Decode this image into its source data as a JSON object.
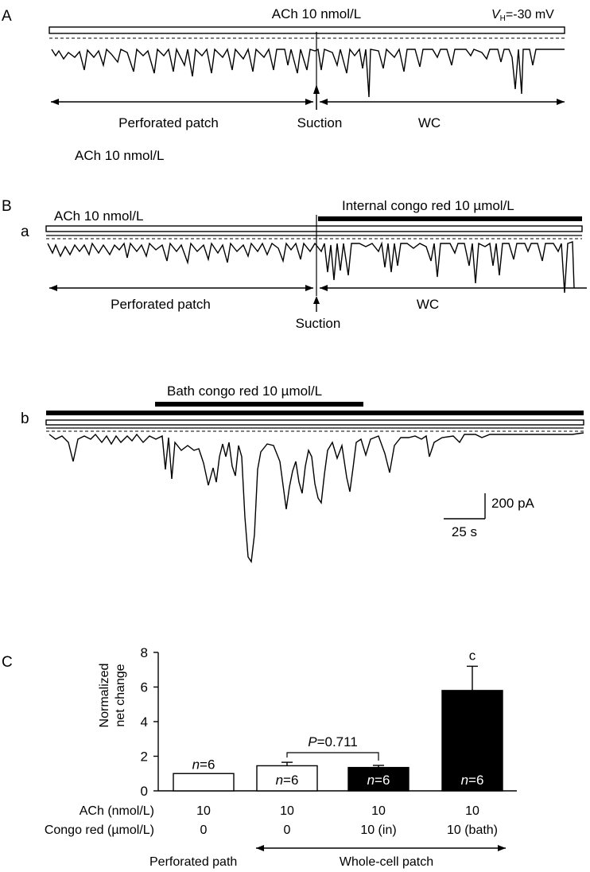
{
  "panel_a": {
    "letter": "A",
    "ach_bar_label": "ACh 10 nmol/L",
    "vh_symbol": "V",
    "vh_subscript": "H",
    "vh_value": "=-30 mV",
    "left_phase": "Perforated patch",
    "suction_label": "Suction",
    "right_phase": "WC",
    "note_below": "ACh 10 nmol/L"
  },
  "panel_b": {
    "letter": "B",
    "sub_a": {
      "letter": "a",
      "ach_bar_label": "ACh 10 nmol/L",
      "internal_label": "Internal congo red 10 µmol/L",
      "left_phase": "Perforated patch",
      "suction_label": "Suction",
      "right_phase": "WC"
    },
    "sub_b": {
      "letter": "b",
      "bath_label": "Bath congo red 10 µmol/L"
    },
    "scale_bar": {
      "current_label": "200 pA",
      "time_label": "25 s"
    }
  },
  "chart_data": {
    "type": "bar",
    "panel_letter": "C",
    "ylabel_line1": "Normalized",
    "ylabel_line2": "net change",
    "ylim": [
      0,
      8
    ],
    "yticks": [
      "0",
      "2",
      "4",
      "6",
      "8"
    ],
    "bars": [
      {
        "value": 1.0,
        "error": 0.0,
        "fill": "#ffffff",
        "n_italic": "n",
        "n_rest": "=6",
        "n_inside": false
      },
      {
        "value": 1.45,
        "error": 0.2,
        "fill": "#ffffff",
        "n_italic": "n",
        "n_rest": "=6",
        "n_inside": true
      },
      {
        "value": 1.35,
        "error": 0.12,
        "fill": "#000000",
        "n_italic": "n",
        "n_rest": "=6",
        "n_inside": true
      },
      {
        "value": 5.8,
        "error": 1.4,
        "fill": "#000000",
        "n_italic": "n",
        "n_rest": "=6",
        "n_inside": true
      }
    ],
    "significance_letter": "c",
    "comparison": {
      "p_italic": "P",
      "p_rest": "=0.711"
    },
    "row_labels": [
      "ACh (nmol/L)",
      "Congo red (µmol/L)"
    ],
    "ach_values": [
      "10",
      "10",
      "10",
      "10"
    ],
    "congo_values": [
      "0",
      "0",
      "10 (in)",
      "10 (bath)"
    ],
    "footer_left": "Perforated path",
    "footer_right": "Whole-cell patch"
  }
}
